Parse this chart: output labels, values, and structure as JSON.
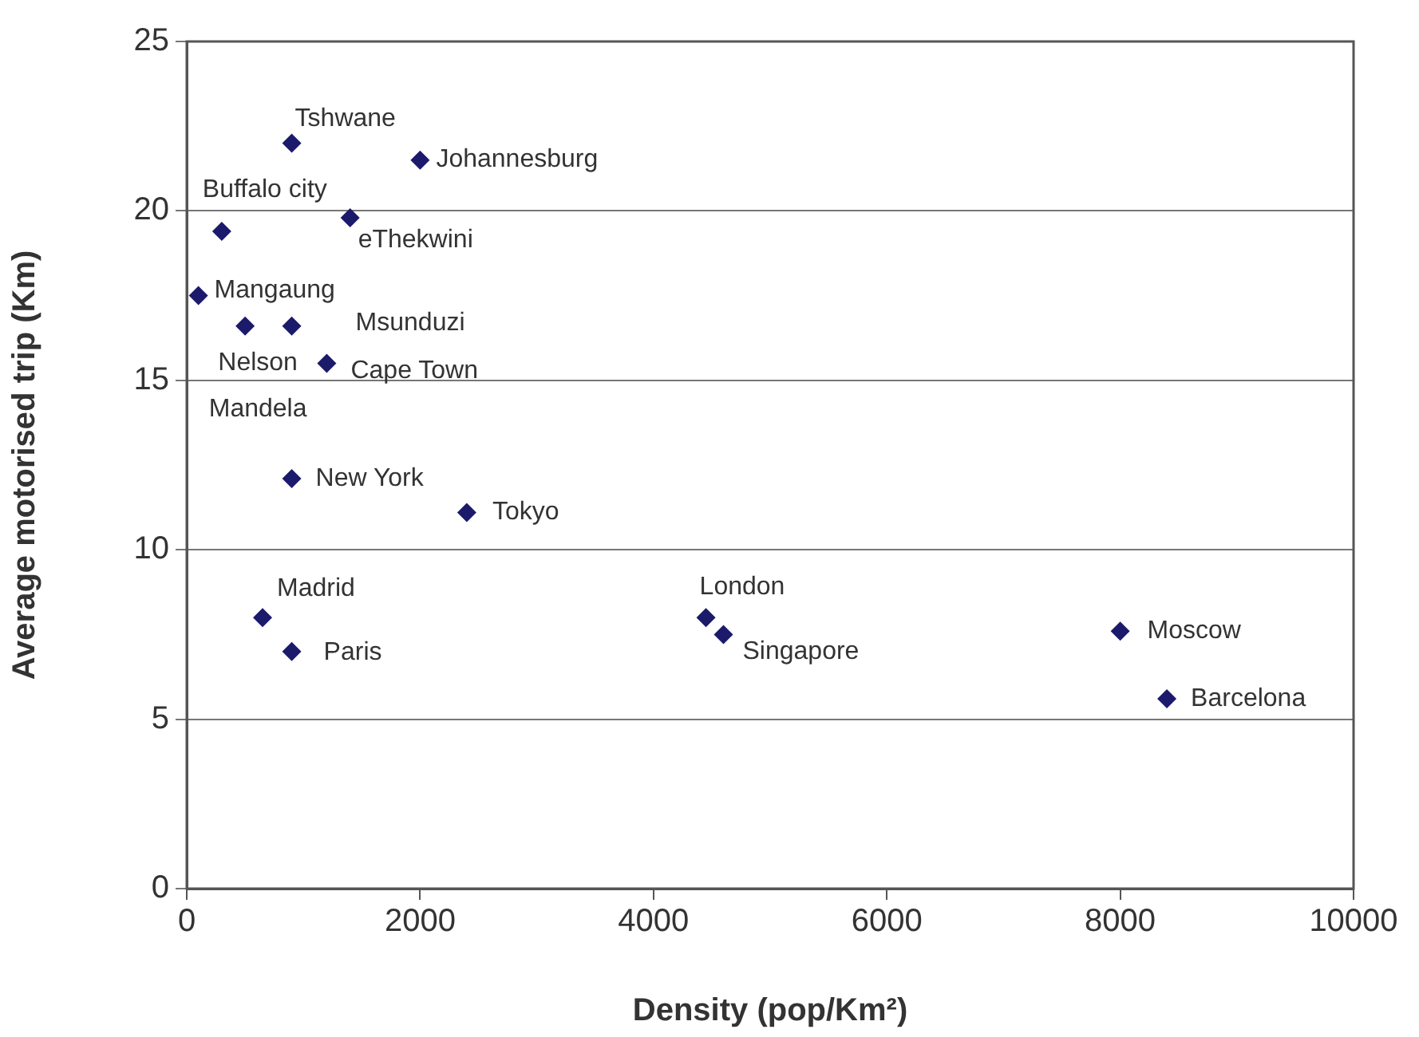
{
  "chart_data": {
    "type": "scatter",
    "xlabel": "Density (pop/Km²)",
    "ylabel": "Average motorised trip (Km)",
    "x": [
      900,
      2000,
      300,
      1400,
      100,
      500,
      900,
      1200,
      900,
      2400,
      650,
      900,
      4450,
      4600,
      8000,
      8400
    ],
    "values": [
      22,
      21.5,
      19.4,
      19.8,
      17.5,
      16.6,
      16.6,
      15.5,
      12.1,
      11.1,
      8,
      7,
      8,
      7.5,
      7.6,
      5.6
    ],
    "color": "#1b1a6b",
    "marker": "diamond",
    "xlim": [
      0,
      10000
    ],
    "xticks": [
      0,
      2000,
      4000,
      6000,
      8000,
      10000
    ],
    "ylim": [
      0,
      25
    ],
    "yticks": [
      0,
      5,
      10,
      15,
      20,
      25
    ],
    "grid": "y",
    "annotations": [
      {
        "text": "Tshwane",
        "x": 900,
        "y": 22
      },
      {
        "text": "Johannesburg",
        "x": 2000,
        "y": 21.5
      },
      {
        "text": "Buffalo city",
        "x": 300,
        "y": 19.4
      },
      {
        "text": "eThekwini",
        "x": 1400,
        "y": 19.8
      },
      {
        "text": "Mangaung",
        "x": 100,
        "y": 17.5
      },
      {
        "text": "Nelson Mandela",
        "x": 500,
        "y": 16.6
      },
      {
        "text": "Msunduzi",
        "x": 900,
        "y": 16.6
      },
      {
        "text": "Cape Town",
        "x": 1200,
        "y": 15.5
      },
      {
        "text": "New York",
        "x": 900,
        "y": 12.1
      },
      {
        "text": "Tokyo",
        "x": 2400,
        "y": 11.1
      },
      {
        "text": "Madrid",
        "x": 650,
        "y": 8
      },
      {
        "text": "Paris",
        "x": 900,
        "y": 7
      },
      {
        "text": "London",
        "x": 4450,
        "y": 8
      },
      {
        "text": "Singapore",
        "x": 4600,
        "y": 7.5
      },
      {
        "text": "Moscow",
        "x": 8000,
        "y": 7.6
      },
      {
        "text": "Barcelona",
        "x": 8400,
        "y": 5.6
      }
    ]
  }
}
